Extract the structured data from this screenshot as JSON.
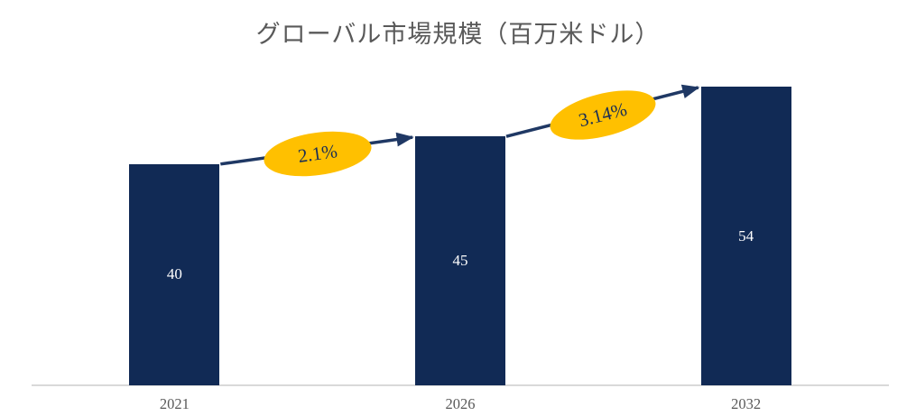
{
  "title": "グローバル市場規模（百万米ドル）",
  "chart_data": {
    "type": "bar",
    "title": "グローバル市場規模（百万米ドル）",
    "categories": [
      "2021",
      "2026",
      "2032"
    ],
    "values": [
      40,
      45,
      54
    ],
    "xlabel": "",
    "ylabel": "",
    "ylim": [
      0,
      54
    ],
    "gridlines": false,
    "legend": "none",
    "bar_color": "#112A55",
    "bar_value_label_color": "#FFFFFF",
    "growth_annotations": [
      {
        "label": "2.1%",
        "from": "2021",
        "to": "2026"
      },
      {
        "label": "3.14%",
        "from": "2026",
        "to": "2032"
      }
    ],
    "annotation_fill": "#FFC000",
    "annotation_text_color": "#1A2E55",
    "arrow_color": "#1F3864",
    "axis_line_color": "#D9D9D9",
    "axis_text_color": "#595959",
    "title_color": "#595959"
  }
}
